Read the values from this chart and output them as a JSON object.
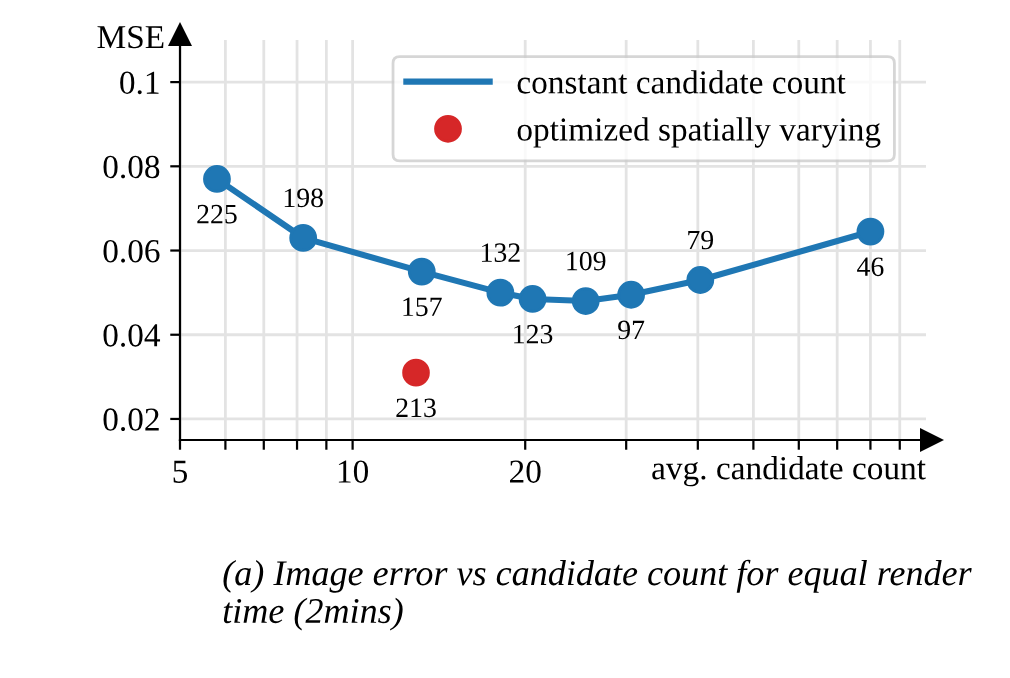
{
  "chart_data": {
    "type": "line",
    "xlabel": "avg. candidate count",
    "ylabel": "MSE",
    "log": "x",
    "xlim": [
      5,
      100
    ],
    "ylim": [
      0.015,
      0.11
    ],
    "xticks": [
      5,
      {
        "value": 6,
        "label": null
      },
      {
        "value": 7,
        "label": null
      },
      {
        "value": 8,
        "label": null
      },
      {
        "value": 9,
        "label": null
      },
      10,
      20,
      {
        "value": 30,
        "label": null
      },
      {
        "value": 40,
        "label": null
      },
      {
        "value": 50,
        "label": null
      },
      {
        "value": 60,
        "label": null
      },
      {
        "value": 70,
        "label": null
      },
      {
        "value": 80,
        "label": null
      },
      {
        "value": 90,
        "label": null
      }
    ],
    "yticks": [
      0.02,
      0.04,
      0.06,
      0.08,
      0.1
    ],
    "grid": true,
    "legend": "top right",
    "series": [
      {
        "name": "constant candidate count",
        "color": "#1f77b4",
        "marker": "circle",
        "x": [
          5.8,
          8.2,
          13.2,
          18.1,
          20.6,
          25.5,
          30.6,
          40.4,
          80
        ],
        "values": [
          0.077,
          0.063,
          0.055,
          0.05,
          0.0485,
          0.048,
          0.0495,
          0.053,
          0.0645
        ]
      },
      {
        "name": "optimized spatially varying",
        "type": "scatter",
        "color": "#d62728",
        "marker": "circle",
        "x": [
          12.9
        ],
        "values": [
          0.031
        ]
      }
    ],
    "annotations": [
      {
        "text": "225",
        "x": 5.8,
        "y": 0.077
      },
      {
        "text": "198",
        "x": 8.2,
        "y": 0.063
      },
      {
        "text": "157",
        "x": 13.2,
        "y": 0.055
      },
      {
        "text": "132",
        "x": 18.1,
        "y": 0.05
      },
      {
        "text": "123",
        "x": 20.6,
        "y": 0.0485
      },
      {
        "text": "109",
        "x": 25.5,
        "y": 0.048
      },
      {
        "text": "97",
        "x": 30.6,
        "y": 0.0495
      },
      {
        "text": "79",
        "x": 40.4,
        "y": 0.053
      },
      {
        "text": "46",
        "x": 80,
        "y": 0.0645
      },
      {
        "text": "213",
        "x": 12.9,
        "y": 0.031
      },
      "(a) Image error vs candidate count for equal render time (2mins)"
    ]
  }
}
